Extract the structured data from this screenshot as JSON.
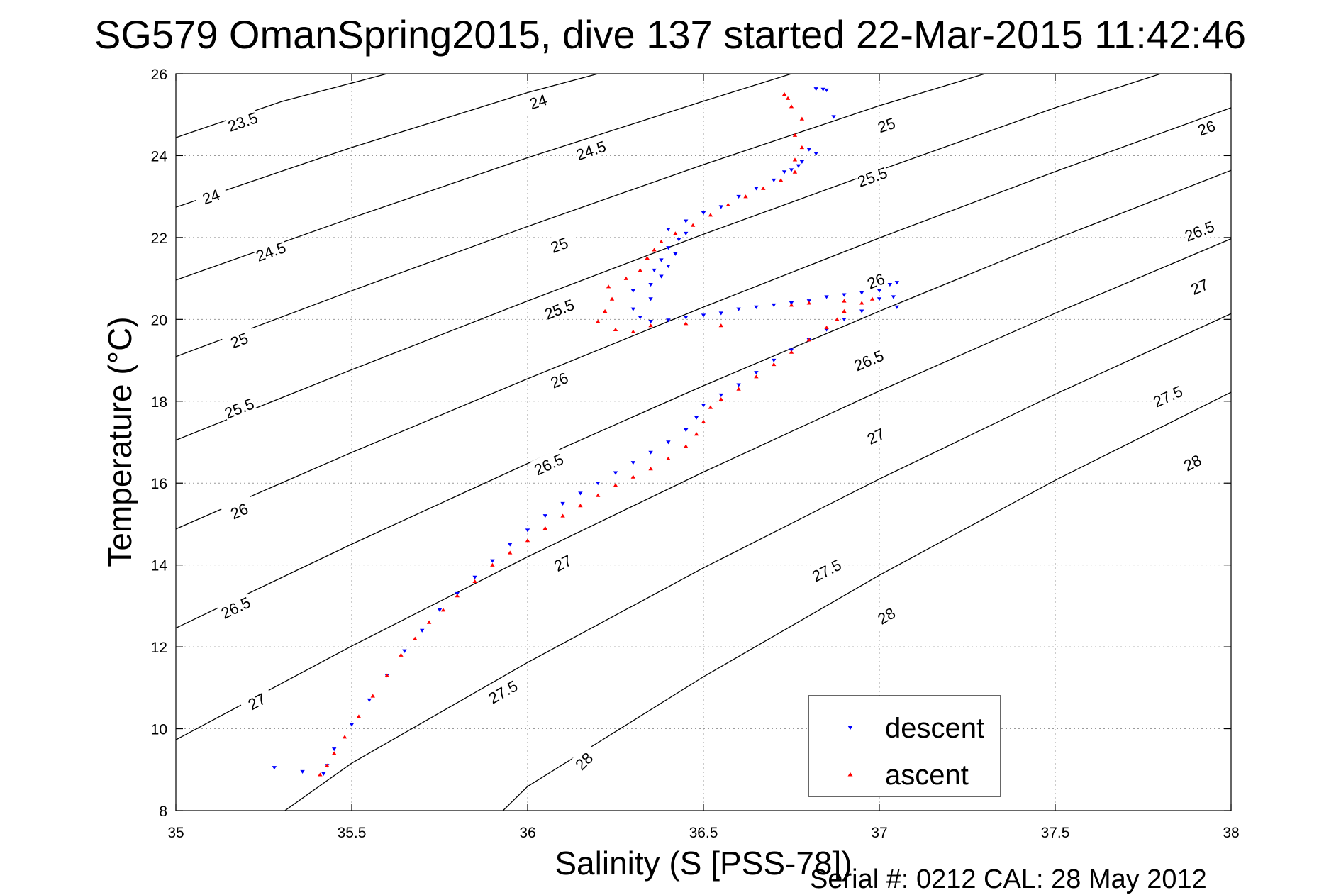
{
  "chart_data": {
    "type": "scatter",
    "title": "SG579 OmanSpring2015, dive 137 started 22-Mar-2015 11:42:46",
    "xlabel": "Salinity (S [PSS-78])",
    "ylabel": "Temperature (°C)",
    "xlim": [
      35,
      38
    ],
    "ylim": [
      8,
      26
    ],
    "xticks": [
      "35",
      "35.5",
      "36",
      "36.5",
      "37",
      "37.5",
      "38"
    ],
    "yticks": [
      "8",
      "10",
      "12",
      "14",
      "16",
      "18",
      "20",
      "22",
      "24",
      "26"
    ],
    "grid": true,
    "legend_position": "bottom-right",
    "footnote": "Serial #: 0212  CAL: 28 May 2012",
    "colors": {
      "descent": "#0000ff",
      "ascent": "#ff0000",
      "contour": "#000000",
      "grid": "#9a9a9a"
    },
    "contours": [
      {
        "label": "23.5",
        "points": [
          [
            35.0,
            24.44
          ],
          [
            35.3,
            25.32
          ],
          [
            35.6,
            26.0
          ]
        ],
        "label_positions": [
          [
            35.19,
            24.83
          ]
        ]
      },
      {
        "label": "24",
        "points": [
          [
            35.0,
            22.74
          ],
          [
            35.5,
            24.2
          ],
          [
            36.0,
            25.54
          ],
          [
            36.2,
            26.0
          ]
        ],
        "label_positions": [
          [
            35.1,
            23.0
          ],
          [
            36.03,
            25.32
          ]
        ]
      },
      {
        "label": "24.5",
        "points": [
          [
            35.0,
            20.96
          ],
          [
            35.5,
            22.48
          ],
          [
            36.0,
            23.95
          ],
          [
            36.5,
            25.33
          ],
          [
            36.75,
            26.0
          ]
        ],
        "label_positions": [
          [
            35.27,
            21.66
          ],
          [
            36.18,
            24.13
          ]
        ]
      },
      {
        "label": "25",
        "points": [
          [
            35.0,
            19.09
          ],
          [
            35.5,
            20.7
          ],
          [
            36.0,
            22.27
          ],
          [
            36.5,
            23.78
          ],
          [
            37.0,
            25.22
          ],
          [
            37.3,
            26.0
          ]
        ],
        "label_positions": [
          [
            35.18,
            19.49
          ],
          [
            36.09,
            21.82
          ],
          [
            37.02,
            24.75
          ]
        ]
      },
      {
        "label": "25.5",
        "points": [
          [
            35.0,
            17.05
          ],
          [
            35.5,
            18.77
          ],
          [
            36.0,
            20.45
          ],
          [
            36.5,
            22.08
          ],
          [
            37.0,
            23.64
          ],
          [
            37.5,
            25.17
          ],
          [
            37.8,
            26.0
          ]
        ],
        "label_positions": [
          [
            35.18,
            17.83
          ],
          [
            36.09,
            20.25
          ],
          [
            36.98,
            23.48
          ]
        ]
      },
      {
        "label": "26",
        "points": [
          [
            35.0,
            14.88
          ],
          [
            35.5,
            16.75
          ],
          [
            36.0,
            18.55
          ],
          [
            36.5,
            20.3
          ],
          [
            37.0,
            21.99
          ],
          [
            37.5,
            23.61
          ],
          [
            38.0,
            25.17
          ]
        ],
        "label_positions": [
          [
            35.18,
            15.32
          ],
          [
            36.09,
            18.52
          ],
          [
            36.99,
            20.94
          ],
          [
            37.93,
            24.68
          ]
        ]
      },
      {
        "label": "26.5",
        "points": [
          [
            35.0,
            12.46
          ],
          [
            35.5,
            14.51
          ],
          [
            36.0,
            16.48
          ],
          [
            36.5,
            18.38
          ],
          [
            37.0,
            20.2
          ],
          [
            37.5,
            21.96
          ],
          [
            38.0,
            23.64
          ]
        ],
        "label_positions": [
          [
            35.17,
            12.96
          ],
          [
            36.06,
            16.46
          ],
          [
            36.97,
            19.0
          ],
          [
            37.91,
            22.16
          ]
        ]
      },
      {
        "label": "27",
        "points": [
          [
            35.0,
            9.73
          ],
          [
            35.5,
            12.02
          ],
          [
            36.0,
            14.2
          ],
          [
            36.5,
            16.27
          ],
          [
            37.0,
            18.25
          ],
          [
            37.5,
            20.15
          ],
          [
            38.0,
            21.97
          ]
        ],
        "label_positions": [
          [
            35.23,
            10.67
          ],
          [
            36.1,
            14.05
          ],
          [
            36.99,
            17.15
          ],
          [
            37.91,
            20.8
          ]
        ]
      },
      {
        "label": "27.5",
        "points": [
          [
            35.31,
            8.0
          ],
          [
            35.5,
            9.16
          ],
          [
            36.0,
            11.62
          ],
          [
            36.5,
            13.93
          ],
          [
            37.0,
            16.1
          ],
          [
            37.5,
            18.17
          ],
          [
            38.0,
            20.14
          ]
        ],
        "label_positions": [
          [
            35.93,
            10.9
          ],
          [
            36.85,
            13.87
          ],
          [
            37.82,
            18.12
          ]
        ]
      },
      {
        "label": "28",
        "points": [
          [
            35.93,
            8.0
          ],
          [
            36.0,
            8.59
          ],
          [
            36.5,
            11.27
          ],
          [
            37.0,
            13.75
          ],
          [
            37.5,
            16.07
          ],
          [
            38.0,
            18.22
          ]
        ],
        "label_positions": [
          [
            36.16,
            9.21
          ],
          [
            37.02,
            12.76
          ],
          [
            37.89,
            16.5
          ]
        ]
      }
    ],
    "series": [
      {
        "name": "descent",
        "marker": "triangle-down",
        "points": [
          [
            36.84,
            25.62
          ],
          [
            36.85,
            25.6
          ],
          [
            36.82,
            25.63
          ],
          [
            36.87,
            24.95
          ],
          [
            36.8,
            24.15
          ],
          [
            36.82,
            24.05
          ],
          [
            36.78,
            23.85
          ],
          [
            36.77,
            23.75
          ],
          [
            36.75,
            23.65
          ],
          [
            36.73,
            23.6
          ],
          [
            36.7,
            23.4
          ],
          [
            36.65,
            23.2
          ],
          [
            36.6,
            23.0
          ],
          [
            36.55,
            22.75
          ],
          [
            36.5,
            22.6
          ],
          [
            36.45,
            22.4
          ],
          [
            36.4,
            22.2
          ],
          [
            36.45,
            22.1
          ],
          [
            36.43,
            21.95
          ],
          [
            36.4,
            21.75
          ],
          [
            36.42,
            21.6
          ],
          [
            36.38,
            21.45
          ],
          [
            36.4,
            21.3
          ],
          [
            36.36,
            21.2
          ],
          [
            36.38,
            21.05
          ],
          [
            36.35,
            20.85
          ],
          [
            36.3,
            20.7
          ],
          [
            36.35,
            20.5
          ],
          [
            36.3,
            20.25
          ],
          [
            36.32,
            20.05
          ],
          [
            36.35,
            19.95
          ],
          [
            36.4,
            19.98
          ],
          [
            36.45,
            20.05
          ],
          [
            36.5,
            20.1
          ],
          [
            36.55,
            20.15
          ],
          [
            36.6,
            20.25
          ],
          [
            36.65,
            20.3
          ],
          [
            36.7,
            20.35
          ],
          [
            36.75,
            20.4
          ],
          [
            36.8,
            20.45
          ],
          [
            36.85,
            20.55
          ],
          [
            36.9,
            20.6
          ],
          [
            36.95,
            20.65
          ],
          [
            37.0,
            20.7
          ],
          [
            37.03,
            20.85
          ],
          [
            37.05,
            20.9
          ],
          [
            37.04,
            20.55
          ],
          [
            37.05,
            20.3
          ],
          [
            37.0,
            20.5
          ],
          [
            36.95,
            20.2
          ],
          [
            36.9,
            20.0
          ],
          [
            36.85,
            19.75
          ],
          [
            36.8,
            19.5
          ],
          [
            36.75,
            19.25
          ],
          [
            36.7,
            19.0
          ],
          [
            36.65,
            18.7
          ],
          [
            36.6,
            18.4
          ],
          [
            36.55,
            18.15
          ],
          [
            36.5,
            17.9
          ],
          [
            36.48,
            17.6
          ],
          [
            36.45,
            17.3
          ],
          [
            36.4,
            17.0
          ],
          [
            36.35,
            16.75
          ],
          [
            36.3,
            16.5
          ],
          [
            36.25,
            16.25
          ],
          [
            36.2,
            16.0
          ],
          [
            36.15,
            15.75
          ],
          [
            36.1,
            15.5
          ],
          [
            36.05,
            15.2
          ],
          [
            36.0,
            14.85
          ],
          [
            35.95,
            14.5
          ],
          [
            35.9,
            14.1
          ],
          [
            35.85,
            13.7
          ],
          [
            35.8,
            13.3
          ],
          [
            35.75,
            12.9
          ],
          [
            35.7,
            12.4
          ],
          [
            35.65,
            11.9
          ],
          [
            35.6,
            11.3
          ],
          [
            35.55,
            10.7
          ],
          [
            35.5,
            10.1
          ],
          [
            35.45,
            9.5
          ],
          [
            35.43,
            9.1
          ],
          [
            35.42,
            8.9
          ],
          [
            35.36,
            8.95
          ],
          [
            35.28,
            9.05
          ]
        ]
      },
      {
        "name": "ascent",
        "marker": "triangle-up",
        "points": [
          [
            35.41,
            8.88
          ],
          [
            35.43,
            9.1
          ],
          [
            35.45,
            9.4
          ],
          [
            35.48,
            9.8
          ],
          [
            35.52,
            10.3
          ],
          [
            35.56,
            10.8
          ],
          [
            35.6,
            11.3
          ],
          [
            35.64,
            11.8
          ],
          [
            35.68,
            12.2
          ],
          [
            35.72,
            12.6
          ],
          [
            35.76,
            12.9
          ],
          [
            35.8,
            13.25
          ],
          [
            35.85,
            13.6
          ],
          [
            35.9,
            14.0
          ],
          [
            35.95,
            14.3
          ],
          [
            36.0,
            14.6
          ],
          [
            36.05,
            14.9
          ],
          [
            36.1,
            15.2
          ],
          [
            36.15,
            15.45
          ],
          [
            36.2,
            15.7
          ],
          [
            36.25,
            15.95
          ],
          [
            36.3,
            16.15
          ],
          [
            36.35,
            16.35
          ],
          [
            36.4,
            16.6
          ],
          [
            36.45,
            16.9
          ],
          [
            36.48,
            17.2
          ],
          [
            36.5,
            17.5
          ],
          [
            36.52,
            17.85
          ],
          [
            36.55,
            18.05
          ],
          [
            36.6,
            18.3
          ],
          [
            36.65,
            18.6
          ],
          [
            36.7,
            18.9
          ],
          [
            36.75,
            19.2
          ],
          [
            36.8,
            19.5
          ],
          [
            36.85,
            19.8
          ],
          [
            36.88,
            20.0
          ],
          [
            36.9,
            20.2
          ],
          [
            36.95,
            20.4
          ],
          [
            36.98,
            20.5
          ],
          [
            36.9,
            20.45
          ],
          [
            36.8,
            20.4
          ],
          [
            36.75,
            20.35
          ],
          [
            36.55,
            19.85
          ],
          [
            36.45,
            19.9
          ],
          [
            36.35,
            19.85
          ],
          [
            36.3,
            19.7
          ],
          [
            36.25,
            19.75
          ],
          [
            36.2,
            19.95
          ],
          [
            36.22,
            20.2
          ],
          [
            36.24,
            20.5
          ],
          [
            36.23,
            20.8
          ],
          [
            36.28,
            21.0
          ],
          [
            36.32,
            21.2
          ],
          [
            36.34,
            21.5
          ],
          [
            36.36,
            21.7
          ],
          [
            36.38,
            21.9
          ],
          [
            36.42,
            22.1
          ],
          [
            36.47,
            22.3
          ],
          [
            36.52,
            22.55
          ],
          [
            36.57,
            22.8
          ],
          [
            36.62,
            23.0
          ],
          [
            36.67,
            23.2
          ],
          [
            36.72,
            23.4
          ],
          [
            36.76,
            23.6
          ],
          [
            36.76,
            23.9
          ],
          [
            36.78,
            24.2
          ],
          [
            36.76,
            24.5
          ],
          [
            36.78,
            24.9
          ],
          [
            36.75,
            25.2
          ],
          [
            36.74,
            25.4
          ],
          [
            36.73,
            25.5
          ]
        ]
      }
    ]
  }
}
